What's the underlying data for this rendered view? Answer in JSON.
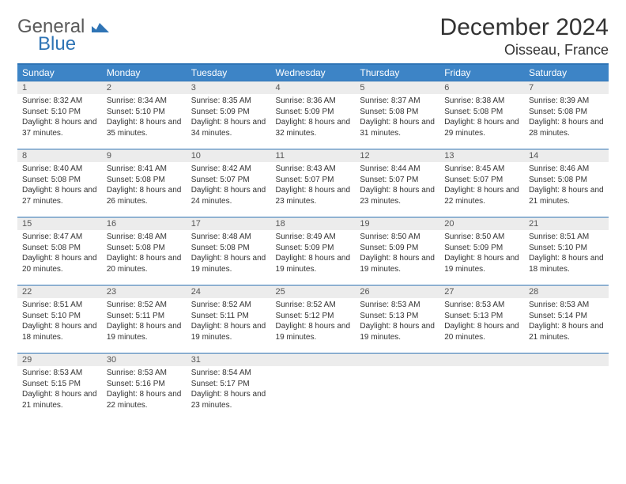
{
  "logo": {
    "word1": "General",
    "word2": "Blue",
    "word1_color": "#5a5a5a",
    "word2_color": "#2f74b5",
    "shape_color": "#2f74b5"
  },
  "title": "December 2024",
  "location": "Oisseau, France",
  "colors": {
    "header_bg": "#3d84c6",
    "header_border": "#2f74b5",
    "cell_border": "#2f74b5",
    "daynum_bg": "#ececec",
    "text": "#333333"
  },
  "weekdays": [
    "Sunday",
    "Monday",
    "Tuesday",
    "Wednesday",
    "Thursday",
    "Friday",
    "Saturday"
  ],
  "weeks": [
    [
      {
        "n": "1",
        "sr": "8:32 AM",
        "ss": "5:10 PM",
        "dl": "8 hours and 37 minutes."
      },
      {
        "n": "2",
        "sr": "8:34 AM",
        "ss": "5:10 PM",
        "dl": "8 hours and 35 minutes."
      },
      {
        "n": "3",
        "sr": "8:35 AM",
        "ss": "5:09 PM",
        "dl": "8 hours and 34 minutes."
      },
      {
        "n": "4",
        "sr": "8:36 AM",
        "ss": "5:09 PM",
        "dl": "8 hours and 32 minutes."
      },
      {
        "n": "5",
        "sr": "8:37 AM",
        "ss": "5:08 PM",
        "dl": "8 hours and 31 minutes."
      },
      {
        "n": "6",
        "sr": "8:38 AM",
        "ss": "5:08 PM",
        "dl": "8 hours and 29 minutes."
      },
      {
        "n": "7",
        "sr": "8:39 AM",
        "ss": "5:08 PM",
        "dl": "8 hours and 28 minutes."
      }
    ],
    [
      {
        "n": "8",
        "sr": "8:40 AM",
        "ss": "5:08 PM",
        "dl": "8 hours and 27 minutes."
      },
      {
        "n": "9",
        "sr": "8:41 AM",
        "ss": "5:08 PM",
        "dl": "8 hours and 26 minutes."
      },
      {
        "n": "10",
        "sr": "8:42 AM",
        "ss": "5:07 PM",
        "dl": "8 hours and 24 minutes."
      },
      {
        "n": "11",
        "sr": "8:43 AM",
        "ss": "5:07 PM",
        "dl": "8 hours and 23 minutes."
      },
      {
        "n": "12",
        "sr": "8:44 AM",
        "ss": "5:07 PM",
        "dl": "8 hours and 23 minutes."
      },
      {
        "n": "13",
        "sr": "8:45 AM",
        "ss": "5:07 PM",
        "dl": "8 hours and 22 minutes."
      },
      {
        "n": "14",
        "sr": "8:46 AM",
        "ss": "5:08 PM",
        "dl": "8 hours and 21 minutes."
      }
    ],
    [
      {
        "n": "15",
        "sr": "8:47 AM",
        "ss": "5:08 PM",
        "dl": "8 hours and 20 minutes."
      },
      {
        "n": "16",
        "sr": "8:48 AM",
        "ss": "5:08 PM",
        "dl": "8 hours and 20 minutes."
      },
      {
        "n": "17",
        "sr": "8:48 AM",
        "ss": "5:08 PM",
        "dl": "8 hours and 19 minutes."
      },
      {
        "n": "18",
        "sr": "8:49 AM",
        "ss": "5:09 PM",
        "dl": "8 hours and 19 minutes."
      },
      {
        "n": "19",
        "sr": "8:50 AM",
        "ss": "5:09 PM",
        "dl": "8 hours and 19 minutes."
      },
      {
        "n": "20",
        "sr": "8:50 AM",
        "ss": "5:09 PM",
        "dl": "8 hours and 19 minutes."
      },
      {
        "n": "21",
        "sr": "8:51 AM",
        "ss": "5:10 PM",
        "dl": "8 hours and 18 minutes."
      }
    ],
    [
      {
        "n": "22",
        "sr": "8:51 AM",
        "ss": "5:10 PM",
        "dl": "8 hours and 18 minutes."
      },
      {
        "n": "23",
        "sr": "8:52 AM",
        "ss": "5:11 PM",
        "dl": "8 hours and 19 minutes."
      },
      {
        "n": "24",
        "sr": "8:52 AM",
        "ss": "5:11 PM",
        "dl": "8 hours and 19 minutes."
      },
      {
        "n": "25",
        "sr": "8:52 AM",
        "ss": "5:12 PM",
        "dl": "8 hours and 19 minutes."
      },
      {
        "n": "26",
        "sr": "8:53 AM",
        "ss": "5:13 PM",
        "dl": "8 hours and 19 minutes."
      },
      {
        "n": "27",
        "sr": "8:53 AM",
        "ss": "5:13 PM",
        "dl": "8 hours and 20 minutes."
      },
      {
        "n": "28",
        "sr": "8:53 AM",
        "ss": "5:14 PM",
        "dl": "8 hours and 21 minutes."
      }
    ],
    [
      {
        "n": "29",
        "sr": "8:53 AM",
        "ss": "5:15 PM",
        "dl": "8 hours and 21 minutes."
      },
      {
        "n": "30",
        "sr": "8:53 AM",
        "ss": "5:16 PM",
        "dl": "8 hours and 22 minutes."
      },
      {
        "n": "31",
        "sr": "8:54 AM",
        "ss": "5:17 PM",
        "dl": "8 hours and 23 minutes."
      },
      null,
      null,
      null,
      null
    ]
  ],
  "labels": {
    "sunrise": "Sunrise: ",
    "sunset": "Sunset: ",
    "daylight": "Daylight: "
  }
}
